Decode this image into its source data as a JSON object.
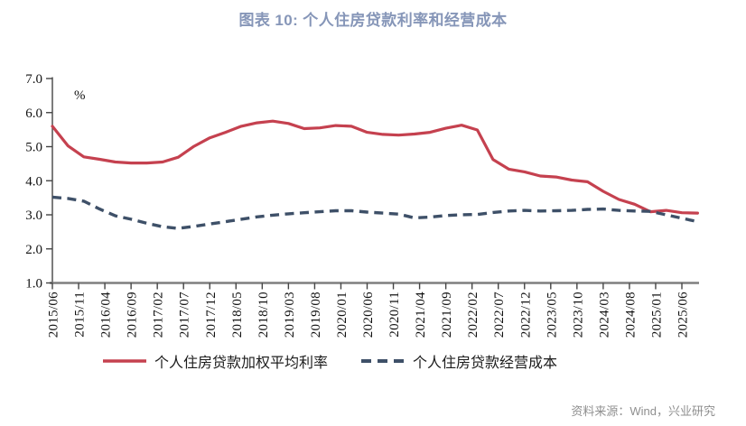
{
  "header": {
    "title": "图表 10: 个人住房贷款利率和经营成本"
  },
  "footer": {
    "source": "资料来源：Wind，兴业研究"
  },
  "colors": {
    "title": "#8696b8",
    "rate_line": "#c5414f",
    "cost_line": "#3e5068",
    "x_axis_line": "#7f7f7f",
    "y_axis_line": "#444444",
    "tick_label": "#111111",
    "source_text": "#8f8f8f"
  },
  "chart_data": {
    "type": "line",
    "title": "图表 10: 个人住房贷款利率和经营成本",
    "unit_label": "%",
    "ylim": [
      1.0,
      7.0
    ],
    "y_tick_labels": [
      "7.0",
      "6.0",
      "5.0",
      "4.0",
      "3.0",
      "2.0",
      "1.0"
    ],
    "x_tick_labels": [
      "2015/06",
      "2015/11",
      "2016/04",
      "2016/09",
      "2017/02",
      "2017/07",
      "2017/12",
      "2018/05",
      "2018/10",
      "2019/03",
      "2019/08",
      "2020/01",
      "2020/06",
      "2020/11",
      "2021/04",
      "2021/09",
      "2022/02",
      "2022/07",
      "2022/12",
      "2023/05",
      "2023/10",
      "2024/03",
      "2024/08",
      "2025/01",
      "2025/06"
    ],
    "months_per_tick": 5,
    "x_step_months": 3,
    "x_dates": [
      "2015/06",
      "2015/09",
      "2015/12",
      "2016/03",
      "2016/06",
      "2016/09",
      "2016/12",
      "2017/03",
      "2017/06",
      "2017/09",
      "2017/12",
      "2018/03",
      "2018/06",
      "2018/09",
      "2018/12",
      "2019/03",
      "2019/06",
      "2019/09",
      "2019/12",
      "2020/03",
      "2020/06",
      "2020/09",
      "2020/12",
      "2021/03",
      "2021/06",
      "2021/09",
      "2021/12",
      "2022/03",
      "2022/06",
      "2022/09",
      "2022/12",
      "2023/03",
      "2023/06",
      "2023/09",
      "2023/12",
      "2024/03",
      "2024/06",
      "2024/09",
      "2024/12",
      "2025/03",
      "2025/06",
      "2025/09"
    ],
    "legend_position": "bottom",
    "grid": false,
    "series": [
      {
        "name": "个人住房贷款加权平均利率",
        "style": "solid",
        "color": "#c5414f",
        "values": [
          5.6,
          5.02,
          4.7,
          4.63,
          4.55,
          4.52,
          4.52,
          4.55,
          4.69,
          5.01,
          5.26,
          5.42,
          5.6,
          5.7,
          5.75,
          5.68,
          5.53,
          5.55,
          5.62,
          5.6,
          5.42,
          5.36,
          5.34,
          5.37,
          5.42,
          5.54,
          5.63,
          5.49,
          4.62,
          4.34,
          4.26,
          4.14,
          4.11,
          4.02,
          3.97,
          3.69,
          3.45,
          3.31,
          3.09,
          3.13,
          3.06,
          3.05
        ]
      },
      {
        "name": "个人住房贷款经营成本",
        "style": "dashed",
        "color": "#3e5068",
        "values": [
          3.52,
          3.48,
          3.4,
          3.17,
          2.97,
          2.87,
          2.75,
          2.65,
          2.6,
          2.66,
          2.73,
          2.8,
          2.87,
          2.94,
          2.99,
          3.03,
          3.06,
          3.09,
          3.12,
          3.12,
          3.08,
          3.05,
          3.02,
          2.91,
          2.93,
          2.98,
          3.0,
          3.01,
          3.07,
          3.11,
          3.13,
          3.11,
          3.12,
          3.13,
          3.16,
          3.17,
          3.13,
          3.11,
          3.1,
          3.0,
          2.9,
          2.8
        ]
      }
    ]
  }
}
